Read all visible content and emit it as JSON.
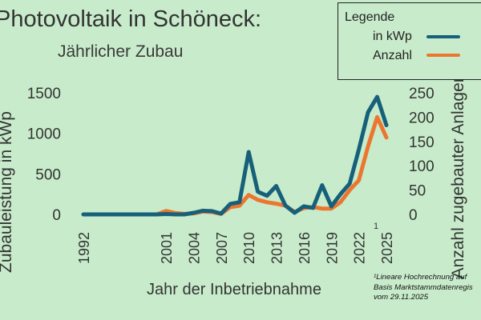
{
  "title": "Photovoltaik in Schöneck:",
  "subtitle": "Jährlicher Zubau",
  "legend": {
    "title": "Legende",
    "items": [
      {
        "label": "in kWp",
        "color": "#17607a"
      },
      {
        "label": "Anzahl",
        "color": "#ec7630"
      }
    ]
  },
  "footnote": [
    "¹Lineare Hochrechnung auf",
    "Basis Marktstammdatenregis",
    "vom 29.11.2025"
  ],
  "chart_data": {
    "type": "line",
    "x": [
      1992,
      1993,
      1994,
      1995,
      1996,
      1997,
      1998,
      1999,
      2000,
      2001,
      2002,
      2003,
      2004,
      2005,
      2006,
      2007,
      2008,
      2009,
      2010,
      2011,
      2012,
      2013,
      2014,
      2015,
      2016,
      2017,
      2018,
      2019,
      2020,
      2021,
      2022,
      2023,
      2024,
      2025
    ],
    "x_ticks": [
      "1992",
      "2001",
      "2004",
      "2007",
      "2010",
      "2013",
      "2016",
      "2019",
      "2022",
      "2025"
    ],
    "x_tick_footnote": {
      "tick": "2025",
      "mark": "1"
    },
    "xlabel": "Jahr der Inbetriebnahme",
    "ylabel": "Zubauleistung in kWp",
    "y2label": "Anzahl zugebauter Anlagen",
    "ylim": [
      0,
      1500
    ],
    "yticks": [
      0,
      500,
      1000,
      1500
    ],
    "y2lim": [
      0,
      250
    ],
    "y2ticks": [
      0,
      50,
      100,
      150,
      200,
      250
    ],
    "grid": false,
    "series": [
      {
        "name": "in kWp",
        "axis": "left",
        "color": "#17607a",
        "values": [
          0,
          0,
          0,
          0,
          0,
          0,
          0,
          0,
          0,
          5,
          0,
          0,
          20,
          45,
          40,
          10,
          130,
          150,
          770,
          280,
          230,
          350,
          110,
          20,
          100,
          80,
          360,
          100,
          250,
          380,
          800,
          1260,
          1450,
          1100
        ]
      },
      {
        "name": "Anzahl",
        "axis": "right",
        "color": "#ec7630",
        "values": [
          0,
          0,
          0,
          0,
          0,
          0,
          0,
          0,
          0,
          7,
          3,
          1,
          2,
          6,
          5,
          1,
          15,
          18,
          40,
          30,
          25,
          22,
          18,
          5,
          13,
          15,
          12,
          12,
          25,
          50,
          70,
          140,
          200,
          158
        ]
      }
    ]
  }
}
